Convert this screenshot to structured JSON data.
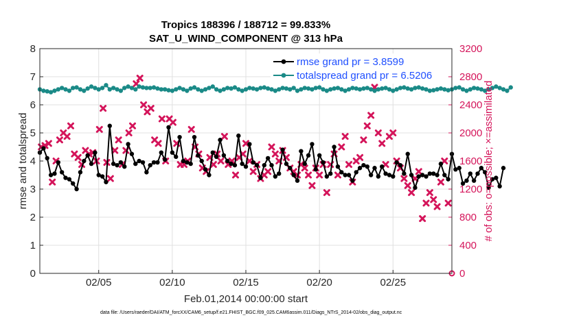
{
  "chart_data": {
    "type": "line",
    "title_line1": "Tropics 188396 / 188712 = 99.833%",
    "title_line2": "SAT_U_WIND_COMPONENT @ 313 hPa",
    "xlabel": "Feb.01,2014 00:00:00 start",
    "ylabel_left": "rmse and totalspread",
    "ylabel_right": "# of obs: o=possible; ×=assimilated",
    "xlim": [
      1,
      29
    ],
    "ylim_left": [
      0,
      8
    ],
    "ylim_right": [
      0,
      3200
    ],
    "left_ticks": [
      "0",
      "1",
      "2",
      "3",
      "4",
      "5",
      "6",
      "7",
      "8"
    ],
    "right_ticks": [
      "0",
      "400",
      "800",
      "1200",
      "1600",
      "2000",
      "2400",
      "2800",
      "3200"
    ],
    "x_ticks": [
      {
        "value": 5,
        "label": "02/05"
      },
      {
        "value": 10,
        "label": "02/10"
      },
      {
        "value": 15,
        "label": "02/15"
      },
      {
        "value": 20,
        "label": "02/20"
      },
      {
        "value": 25,
        "label": "02/25"
      }
    ],
    "legend": [
      {
        "label": "rmse grand pr = 3.8599",
        "color": "#000000"
      },
      {
        "label": "totalspread grand pr = 6.5206",
        "color": "#1a8a87"
      }
    ],
    "series": [
      {
        "name": "rmse",
        "axis": "left",
        "color": "#000000",
        "x_start": 1.0,
        "x_step": 0.125,
        "values": [
          4.3,
          4.45,
          4.1,
          3.5,
          3.55,
          3.95,
          3.6,
          3.4,
          3.35,
          3.2,
          3.0,
          3.6,
          4.0,
          4.2,
          3.9,
          4.3,
          3.5,
          3.45,
          3.25,
          5.25,
          3.9,
          3.85,
          3.95,
          3.8,
          4.6,
          4.25,
          3.9,
          4.0,
          3.95,
          3.6,
          3.85,
          3.95,
          3.95,
          4.3,
          4.05,
          5.2,
          4.3,
          4.15,
          4.85,
          4.0,
          3.95,
          3.9,
          4.85,
          4.2,
          4.0,
          3.7,
          3.5,
          4.3,
          4.15,
          4.75,
          4.2,
          4.0,
          3.9,
          3.85,
          4.9,
          3.9,
          3.8,
          4.6,
          3.95,
          3.85,
          3.4,
          3.85,
          4.1,
          3.85,
          3.45,
          3.55,
          4.4,
          3.9,
          3.75,
          3.5,
          3.3,
          4.35,
          3.9,
          4.2,
          4.6,
          3.7,
          4.2,
          3.95,
          3.45,
          3.55,
          4.5,
          3.8,
          3.6,
          3.5,
          3.5,
          3.3,
          3.6,
          3.75,
          3.85,
          3.8,
          3.5,
          3.75,
          3.45,
          3.8,
          3.55,
          3.5,
          3.45,
          3.95,
          3.85,
          3.55,
          4.25,
          3.5,
          3.05,
          3.45,
          3.5,
          3.45,
          3.55,
          3.55,
          3.5,
          3.9,
          3.5,
          3.35,
          4.25,
          3.7,
          3.75,
          3.2,
          3.3,
          3.55,
          3.3,
          3.55,
          3.75,
          3.6,
          3.05,
          3.35,
          3.4,
          3.1,
          3.75
        ],
        "sampled_every": 2
      },
      {
        "name": "totalspread",
        "axis": "left",
        "color": "#1a8a87",
        "x_start": 1.0,
        "x_step": 0.125,
        "values": [
          6.55,
          6.5,
          6.48,
          6.45,
          6.5,
          6.55,
          6.6,
          6.55,
          6.5,
          6.6,
          6.62,
          6.55,
          6.5,
          6.58,
          6.65,
          6.6,
          6.55,
          6.6,
          6.7,
          6.55,
          6.6,
          6.55,
          6.5,
          6.6,
          6.65,
          6.6,
          6.55,
          6.65,
          6.62,
          6.6,
          6.6,
          6.62,
          6.58,
          6.55,
          6.55,
          6.52,
          6.5,
          6.55,
          6.6,
          6.55,
          6.5,
          6.58,
          6.62,
          6.55,
          6.5,
          6.55,
          6.6,
          6.65,
          6.55,
          6.5,
          6.55,
          6.6,
          6.58,
          6.62,
          6.55,
          6.5,
          6.55,
          6.6,
          6.58,
          6.55,
          6.6,
          6.62,
          6.58,
          6.55,
          6.5,
          6.55,
          6.6,
          6.58,
          6.55,
          6.6,
          6.5,
          6.55,
          6.6,
          6.58,
          6.55,
          6.6,
          6.62,
          6.55,
          6.5,
          6.55,
          6.58,
          6.6,
          6.55,
          6.5,
          6.55,
          6.6,
          6.58,
          6.55,
          6.58,
          6.6,
          6.55,
          6.5,
          6.55,
          6.58,
          6.6,
          6.55,
          6.5,
          6.55,
          6.6,
          6.62,
          6.58,
          6.55,
          6.6,
          6.62,
          6.58,
          6.55,
          6.5,
          6.52,
          6.55,
          6.58,
          6.55,
          6.52,
          6.55,
          6.6,
          6.62,
          6.55,
          6.5,
          6.55,
          6.6,
          6.58,
          6.55,
          6.5,
          6.55,
          6.6,
          6.65,
          6.6,
          6.55,
          6.5,
          6.62
        ],
        "sampled_every": 2
      },
      {
        "name": "obs_assimilated",
        "axis": "right",
        "color": "#d4145a",
        "marker": "x",
        "points": [
          [
            1.1,
            1800
          ],
          [
            1.35,
            1820
          ],
          [
            1.6,
            1850
          ],
          [
            1.85,
            1300
          ],
          [
            2.1,
            1600
          ],
          [
            2.35,
            1900
          ],
          [
            2.6,
            2000
          ],
          [
            2.85,
            1950
          ],
          [
            3.1,
            2100
          ],
          [
            3.35,
            1700
          ],
          [
            3.6,
            1650
          ],
          [
            3.85,
            1550
          ],
          [
            4.1,
            1750
          ],
          [
            4.35,
            1700
          ],
          [
            4.6,
            1720
          ],
          [
            4.85,
            1600
          ],
          [
            5.05,
            2050
          ],
          [
            5.3,
            2350
          ],
          [
            5.55,
            1580
          ],
          [
            5.8,
            1350
          ],
          [
            6.1,
            1750
          ],
          [
            6.35,
            1900
          ],
          [
            6.6,
            1550
          ],
          [
            6.85,
            1750
          ],
          [
            7.05,
            2000
          ],
          [
            7.3,
            2100
          ],
          [
            7.55,
            2700
          ],
          [
            7.8,
            2780
          ],
          [
            8.05,
            2400
          ],
          [
            8.3,
            2300
          ],
          [
            8.55,
            2350
          ],
          [
            8.8,
            1900
          ],
          [
            9.05,
            1850
          ],
          [
            9.3,
            2200
          ],
          [
            9.55,
            1600
          ],
          [
            9.8,
            2200
          ],
          [
            10.05,
            2150
          ],
          [
            10.3,
            1850
          ],
          [
            10.55,
            1550
          ],
          [
            10.8,
            1550
          ],
          [
            11.05,
            1600
          ],
          [
            11.3,
            2050
          ],
          [
            11.55,
            1800
          ],
          [
            11.8,
            1700
          ],
          [
            12.05,
            1500
          ],
          [
            12.3,
            1450
          ],
          [
            12.55,
            1650
          ],
          [
            12.8,
            1550
          ],
          [
            13.05,
            1700
          ],
          [
            13.3,
            1600
          ],
          [
            13.55,
            1950
          ],
          [
            13.8,
            1550
          ],
          [
            14.05,
            1600
          ],
          [
            14.3,
            1400
          ],
          [
            14.55,
            1650
          ],
          [
            14.8,
            1700
          ],
          [
            15.0,
            1850
          ],
          [
            15.25,
            1600
          ],
          [
            15.5,
            1450
          ],
          [
            15.75,
            1550
          ],
          [
            16.0,
            1350
          ],
          [
            16.25,
            1400
          ],
          [
            16.5,
            1450
          ],
          [
            16.75,
            1800
          ],
          [
            17.0,
            1700
          ],
          [
            17.25,
            1600
          ],
          [
            17.5,
            1750
          ],
          [
            17.75,
            1650
          ],
          [
            18.0,
            1500
          ],
          [
            18.25,
            1450
          ],
          [
            18.5,
            1400
          ],
          [
            18.75,
            1550
          ],
          [
            19.0,
            1500
          ],
          [
            19.25,
            1400
          ],
          [
            19.5,
            1250
          ],
          [
            19.75,
            1500
          ],
          [
            20.0,
            1400
          ],
          [
            20.25,
            1550
          ],
          [
            20.5,
            1150
          ],
          [
            20.75,
            1550
          ],
          [
            21.0,
            1700
          ],
          [
            21.25,
            1400
          ],
          [
            21.5,
            1800
          ],
          [
            21.75,
            1950
          ],
          [
            22.0,
            1550
          ],
          [
            22.25,
            1300
          ],
          [
            22.5,
            1600
          ],
          [
            22.75,
            1650
          ],
          [
            23.0,
            1900
          ],
          [
            23.25,
            2100
          ],
          [
            23.5,
            2250
          ],
          [
            23.75,
            2650
          ],
          [
            24.0,
            2000
          ],
          [
            24.25,
            1850
          ],
          [
            24.5,
            1550
          ],
          [
            24.75,
            1950
          ],
          [
            25.0,
            2000
          ],
          [
            25.25,
            1600
          ],
          [
            25.5,
            1500
          ],
          [
            25.75,
            1350
          ],
          [
            26.0,
            1250
          ],
          [
            26.25,
            1150
          ],
          [
            26.5,
            1350
          ],
          [
            26.75,
            1450
          ],
          [
            27.0,
            780
          ],
          [
            27.25,
            1000
          ],
          [
            27.5,
            1150
          ],
          [
            27.75,
            1050
          ],
          [
            28.0,
            950
          ],
          [
            28.25,
            1300
          ],
          [
            28.5,
            1600
          ],
          [
            28.75,
            1000
          ]
        ]
      }
    ],
    "grid": true
  },
  "footer": {
    "datafile": "data file: /Users/raeder/DAI/ATM_forcXX/CAM6_setup/f.e21.FHIST_BGC.f09_025.CAM6assim.011/Diags_NTrS_2014-02/obs_diag_output.nc"
  }
}
